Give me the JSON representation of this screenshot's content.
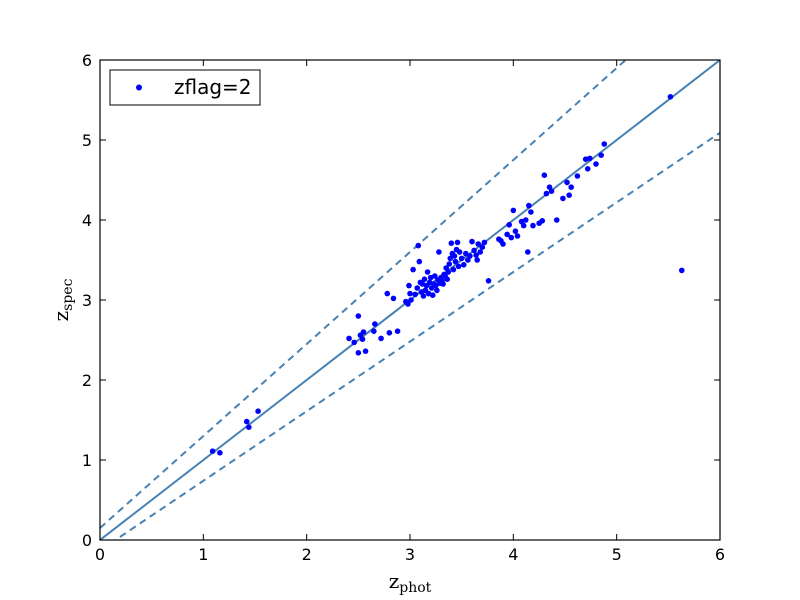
{
  "chart_data": {
    "type": "scatter",
    "title": "",
    "xlabel": {
      "base": "z",
      "sub": "phot"
    },
    "ylabel": {
      "base": "z",
      "sub": "spec"
    },
    "xlim": [
      0,
      6
    ],
    "ylim": [
      0,
      6
    ],
    "xticks": [
      "0",
      "1",
      "2",
      "3",
      "4",
      "5",
      "6"
    ],
    "yticks": [
      "0",
      "1",
      "2",
      "3",
      "4",
      "5",
      "6"
    ],
    "grid": false,
    "legend": {
      "placement": "top-left",
      "entries": [
        "zflag=2"
      ]
    },
    "colors": {
      "points": "#0000ff",
      "lines": "#4682b4"
    },
    "reference_lines": [
      {
        "kind": "one-to-one",
        "style": "solid",
        "slope": 1.0,
        "intercept": 0.0
      },
      {
        "kind": "upper-bound",
        "style": "dashed",
        "slope": 1.15,
        "intercept": 0.15
      },
      {
        "kind": "lower-bound",
        "style": "dashed",
        "slope": 0.87,
        "intercept": -0.13
      }
    ],
    "series": [
      {
        "name": "zflag=2",
        "points": [
          [
            1.09,
            1.11
          ],
          [
            1.16,
            1.09
          ],
          [
            1.42,
            1.48
          ],
          [
            1.44,
            1.41
          ],
          [
            1.53,
            1.61
          ],
          [
            2.41,
            2.52
          ],
          [
            2.46,
            2.47
          ],
          [
            2.5,
            2.8
          ],
          [
            2.5,
            2.34
          ],
          [
            2.52,
            2.56
          ],
          [
            2.54,
            2.51
          ],
          [
            2.55,
            2.6
          ],
          [
            2.57,
            2.36
          ],
          [
            2.65,
            2.61
          ],
          [
            2.66,
            2.7
          ],
          [
            2.72,
            2.52
          ],
          [
            2.78,
            3.08
          ],
          [
            2.8,
            2.59
          ],
          [
            2.84,
            3.02
          ],
          [
            2.88,
            2.61
          ],
          [
            2.96,
            2.98
          ],
          [
            2.98,
            2.95
          ],
          [
            2.99,
            3.18
          ],
          [
            3.0,
            3.08
          ],
          [
            3.01,
            3.0
          ],
          [
            3.03,
            3.38
          ],
          [
            3.05,
            3.07
          ],
          [
            3.07,
            3.15
          ],
          [
            3.08,
            3.68
          ],
          [
            3.09,
            3.48
          ],
          [
            3.1,
            3.22
          ],
          [
            3.11,
            3.1
          ],
          [
            3.12,
            3.2
          ],
          [
            3.13,
            3.05
          ],
          [
            3.14,
            3.26
          ],
          [
            3.15,
            3.12
          ],
          [
            3.16,
            3.18
          ],
          [
            3.17,
            3.35
          ],
          [
            3.18,
            3.08
          ],
          [
            3.19,
            3.22
          ],
          [
            3.2,
            3.28
          ],
          [
            3.21,
            3.15
          ],
          [
            3.22,
            3.06
          ],
          [
            3.23,
            3.2
          ],
          [
            3.24,
            3.3
          ],
          [
            3.25,
            3.18
          ],
          [
            3.26,
            3.12
          ],
          [
            3.27,
            3.25
          ],
          [
            3.28,
            3.6
          ],
          [
            3.29,
            3.21
          ],
          [
            3.3,
            3.28
          ],
          [
            3.31,
            3.24
          ],
          [
            3.32,
            3.2
          ],
          [
            3.33,
            3.32
          ],
          [
            3.34,
            3.3
          ],
          [
            3.35,
            3.4
          ],
          [
            3.36,
            3.26
          ],
          [
            3.37,
            3.35
          ],
          [
            3.38,
            3.45
          ],
          [
            3.39,
            3.52
          ],
          [
            3.4,
            3.71
          ],
          [
            3.41,
            3.58
          ],
          [
            3.42,
            3.38
          ],
          [
            3.43,
            3.55
          ],
          [
            3.44,
            3.48
          ],
          [
            3.45,
            3.63
          ],
          [
            3.46,
            3.72
          ],
          [
            3.47,
            3.42
          ],
          [
            3.48,
            3.6
          ],
          [
            3.5,
            3.52
          ],
          [
            3.52,
            3.44
          ],
          [
            3.54,
            3.58
          ],
          [
            3.56,
            3.5
          ],
          [
            3.58,
            3.55
          ],
          [
            3.6,
            3.73
          ],
          [
            3.62,
            3.62
          ],
          [
            3.64,
            3.56
          ],
          [
            3.65,
            3.5
          ],
          [
            3.66,
            3.7
          ],
          [
            3.68,
            3.6
          ],
          [
            3.7,
            3.66
          ],
          [
            3.72,
            3.72
          ],
          [
            3.76,
            3.24
          ],
          [
            3.86,
            3.76
          ],
          [
            3.88,
            3.74
          ],
          [
            3.9,
            3.7
          ],
          [
            3.94,
            3.82
          ],
          [
            3.96,
            3.94
          ],
          [
            3.98,
            3.78
          ],
          [
            4.0,
            4.12
          ],
          [
            4.02,
            3.86
          ],
          [
            4.04,
            3.8
          ],
          [
            4.08,
            3.98
          ],
          [
            4.1,
            3.93
          ],
          [
            4.12,
            4.0
          ],
          [
            4.14,
            3.6
          ],
          [
            4.15,
            4.18
          ],
          [
            4.17,
            4.1
          ],
          [
            4.19,
            3.93
          ],
          [
            4.25,
            3.96
          ],
          [
            4.28,
            3.99
          ],
          [
            4.3,
            4.56
          ],
          [
            4.32,
            4.33
          ],
          [
            4.35,
            4.41
          ],
          [
            4.37,
            4.36
          ],
          [
            4.42,
            4.0
          ],
          [
            4.48,
            4.27
          ],
          [
            4.52,
            4.47
          ],
          [
            4.54,
            4.31
          ],
          [
            4.56,
            4.41
          ],
          [
            4.62,
            4.55
          ],
          [
            4.7,
            4.76
          ],
          [
            4.72,
            4.64
          ],
          [
            4.74,
            4.77
          ],
          [
            4.8,
            4.7
          ],
          [
            4.85,
            4.81
          ],
          [
            4.88,
            4.95
          ],
          [
            5.52,
            5.54
          ],
          [
            5.63,
            3.37
          ]
        ]
      }
    ]
  }
}
